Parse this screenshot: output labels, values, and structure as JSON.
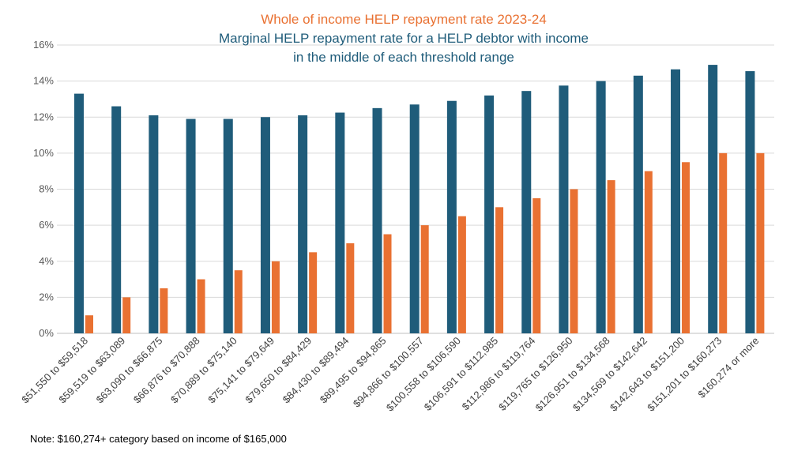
{
  "chart_data": {
    "type": "bar",
    "title_lines": [
      "Whole of income HELP repayment rate 2023-24",
      "Marginal HELP repayment rate for a HELP debtor with income",
      "in the middle of each threshold range"
    ],
    "categories": [
      "$51,550 to $59,518",
      "$59,519 to $63,089",
      "$63,090 to $66,875",
      "$66,876 to $70,888",
      "$70,889 to $75,140",
      "$75,141 to $79,649",
      "$79,650 to $84,429",
      "$84,430 to $89,494",
      "$89,495 to $94,865",
      "$94,866 to $100,557",
      "$100,558 to $106,590",
      "$106,591 to $112,985",
      "$112,986 to $119,764",
      "$119,765 to $126,950",
      "$126,951 to $134,568",
      "$134,569 to $142,642",
      "$142,643 to $151,200",
      "$151,201 to $160,273",
      "$160,274 or more"
    ],
    "series": [
      {
        "label": "Marginal HELP repayment rate for a HELP debtor with income in the middle of each threshold range",
        "color": "#1F5C7A",
        "values": [
          13.3,
          12.6,
          12.1,
          11.9,
          11.9,
          12.0,
          12.1,
          12.25,
          12.5,
          12.7,
          12.9,
          13.2,
          13.45,
          13.75,
          14.0,
          14.3,
          14.65,
          14.9,
          14.55
        ]
      },
      {
        "label": "Whole of income HELP repayment rate 2023-24",
        "color": "#E97132",
        "values": [
          1,
          2,
          2.5,
          3,
          3.5,
          4,
          4.5,
          5,
          5.5,
          6,
          6.5,
          7,
          7.5,
          8,
          8.5,
          9,
          9.5,
          10,
          10
        ]
      }
    ],
    "ylim": [
      0,
      16
    ],
    "yticks": [
      0,
      2,
      4,
      6,
      8,
      10,
      12,
      14,
      16
    ],
    "ytick_format": "percent",
    "grid": true,
    "legend": "none",
    "note": "Note: $160,274+ category based on income of $165,000"
  }
}
